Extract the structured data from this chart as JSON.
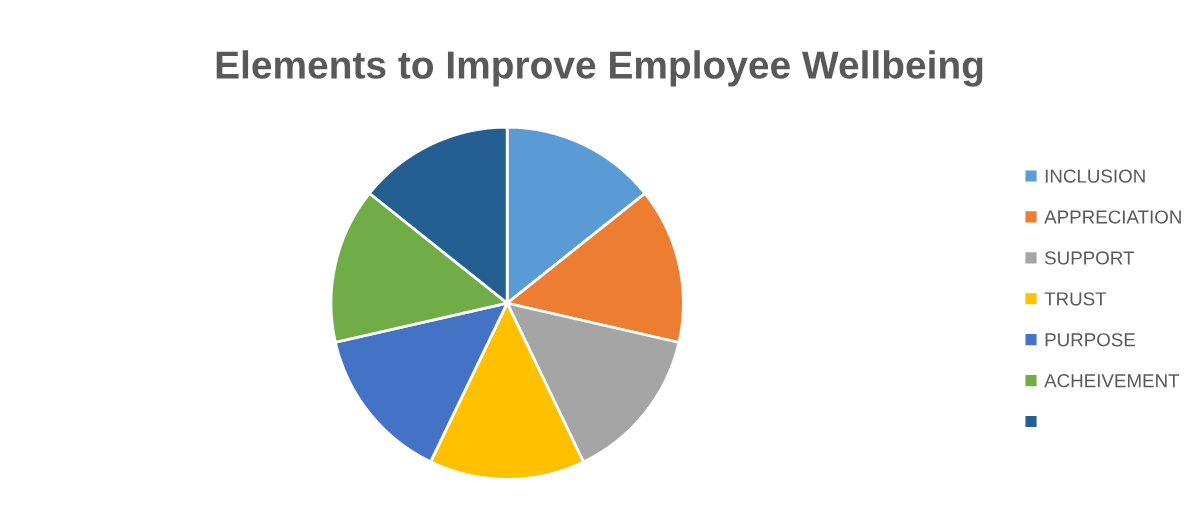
{
  "chart_data": {
    "type": "pie",
    "title": "Elements to Improve Employee Wellbeing",
    "categories": [
      "INCLUSION",
      "APPRECIATION",
      "SUPPORT",
      "TRUST",
      "PURPOSE",
      "ACHEIVEMENT",
      null
    ],
    "values": [
      14.29,
      14.29,
      14.29,
      14.29,
      14.28,
      14.28,
      14.28
    ],
    "colors": [
      "#5b9bd5",
      "#ed7d31",
      "#a5a5a5",
      "#ffc000",
      "#4472c4",
      "#70ad47",
      "#255e91"
    ],
    "legend": "right"
  }
}
